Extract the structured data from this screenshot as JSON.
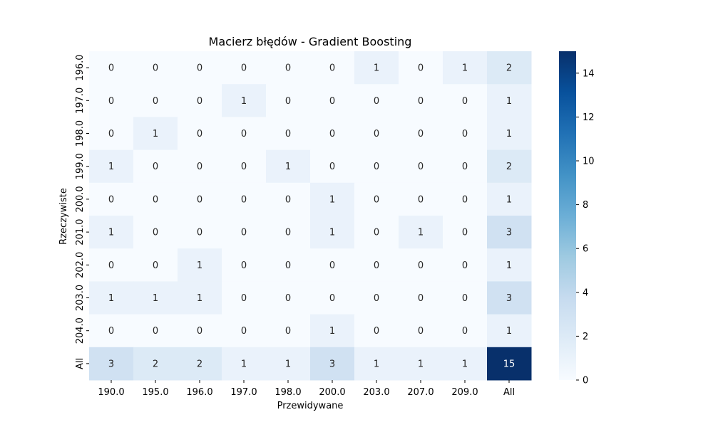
{
  "chart_data": {
    "type": "heatmap",
    "title": "Macierz błędów - Gradient Boosting",
    "xlabel": "Przewidywane",
    "ylabel": "Rzeczywiste",
    "x_categories": [
      "190.0",
      "195.0",
      "196.0",
      "197.0",
      "198.0",
      "200.0",
      "203.0",
      "207.0",
      "209.0",
      "All"
    ],
    "y_categories": [
      "196.0",
      "197.0",
      "198.0",
      "199.0",
      "200.0",
      "201.0",
      "202.0",
      "203.0",
      "204.0",
      "All"
    ],
    "values": [
      [
        0,
        0,
        0,
        0,
        0,
        0,
        1,
        0,
        1,
        2
      ],
      [
        0,
        0,
        0,
        1,
        0,
        0,
        0,
        0,
        0,
        1
      ],
      [
        0,
        1,
        0,
        0,
        0,
        0,
        0,
        0,
        0,
        1
      ],
      [
        1,
        0,
        0,
        0,
        1,
        0,
        0,
        0,
        0,
        2
      ],
      [
        0,
        0,
        0,
        0,
        0,
        1,
        0,
        0,
        0,
        1
      ],
      [
        1,
        0,
        0,
        0,
        0,
        1,
        0,
        1,
        0,
        3
      ],
      [
        0,
        0,
        1,
        0,
        0,
        0,
        0,
        0,
        0,
        1
      ],
      [
        1,
        1,
        1,
        0,
        0,
        0,
        0,
        0,
        0,
        3
      ],
      [
        0,
        0,
        0,
        0,
        0,
        1,
        0,
        0,
        0,
        1
      ],
      [
        3,
        2,
        2,
        1,
        1,
        3,
        1,
        1,
        1,
        15
      ]
    ],
    "colormap": "Blues",
    "vmin": 0,
    "vmax": 15,
    "colorbar_ticks": [
      "0",
      "2",
      "4",
      "6",
      "8",
      "10",
      "12",
      "14"
    ]
  }
}
